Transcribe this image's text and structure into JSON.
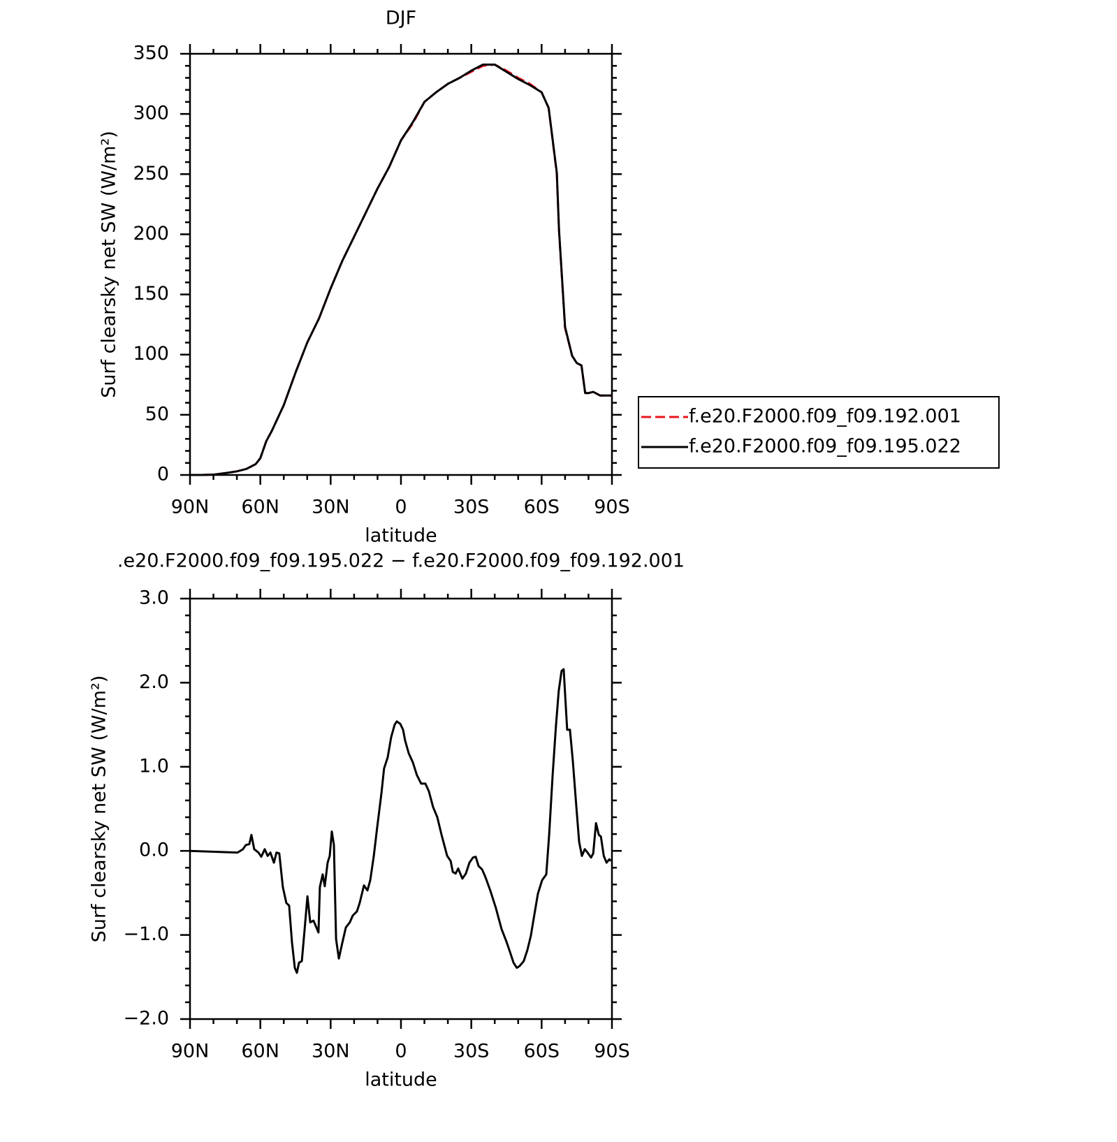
{
  "chart_data": [
    {
      "type": "line",
      "title": "DJF",
      "xlabel": "latitude",
      "ylabel": "Surf clearsky net SW (W/m²)",
      "x": [
        90,
        85,
        80,
        75,
        70,
        66,
        62,
        60,
        57.5,
        55,
        50,
        45,
        40,
        35,
        30,
        25,
        20,
        15,
        10,
        5,
        0,
        -5,
        -10,
        -15,
        -20,
        -25,
        -30,
        -35,
        -40,
        -45,
        -50,
        -55,
        -60,
        -63,
        -66.5,
        -67.4,
        -70,
        -73,
        -75,
        -77,
        -78.6,
        -80,
        -82,
        -85,
        -90
      ],
      "series": [
        {
          "name": "f.e20.F2000.f09_f09.192.001",
          "color": "#e8141c",
          "dashed": true,
          "values": [
            0,
            0,
            0.3,
            1.5,
            3,
            5,
            9,
            14,
            28,
            37,
            58,
            85,
            110,
            130,
            155,
            178,
            198,
            218,
            238,
            256,
            278,
            292,
            310,
            318,
            325,
            330,
            335,
            340,
            341,
            336,
            330,
            325,
            318,
            305,
            250,
            203,
            122,
            99,
            93,
            91,
            68,
            68,
            69,
            66,
            66
          ]
        },
        {
          "name": "f.e20.F2000.f09_f09.195.022",
          "color": "#000000",
          "dashed": false,
          "values": [
            0,
            0,
            0.3,
            1.5,
            3,
            5,
            9,
            14,
            28,
            37,
            58,
            85,
            110,
            130,
            155,
            178,
            198,
            218,
            238,
            256,
            278,
            293,
            310,
            318,
            325,
            330,
            336,
            341,
            341,
            335,
            329,
            324,
            318,
            305,
            251,
            204,
            123,
            99,
            93,
            91,
            68,
            68,
            69,
            66,
            66
          ]
        }
      ],
      "xlim": [
        90,
        -90
      ],
      "xticks": [
        {
          "value": 90,
          "label": "90N"
        },
        {
          "value": 60,
          "label": "60N"
        },
        {
          "value": 30,
          "label": "30N"
        },
        0,
        {
          "value": -30,
          "label": "30S"
        },
        {
          "value": -60,
          "label": "60S"
        },
        {
          "value": -90,
          "label": "90S"
        }
      ],
      "ylim": [
        0,
        350
      ],
      "yticks": [
        0,
        50,
        100,
        150,
        200,
        250,
        300,
        350
      ],
      "legend": "right"
    },
    {
      "type": "line",
      "title": ".e20.F2000.f09_f09.195.022 − f.e20.F2000.f09_f09.192.001",
      "xlabel": "latitude",
      "ylabel": "Surf clearsky net SW (W/m²)",
      "x": [
        90,
        69.7,
        67.4,
        66.2,
        64.7,
        63.8,
        62.6,
        60.8,
        59.6,
        58.1,
        56.9,
        55.7,
        54.2,
        53.1,
        51.9,
        50.4,
        48.9,
        47.7,
        46.5,
        45.3,
        44.4,
        43.5,
        42.3,
        41.1,
        39.9,
        38.7,
        37.3,
        36.1,
        35.2,
        34.6,
        33.4,
        32.5,
        31.3,
        30.4,
        29.5,
        28.6,
        27.7,
        26.5,
        25.0,
        23.5,
        21.8,
        20.6,
        18.8,
        17.6,
        15.8,
        14.3,
        13.1,
        11.6,
        10.2,
        8.3,
        7.2,
        5.7,
        4.2,
        2.7,
        1.8,
        0.3,
        -0.9,
        -1.8,
        -3.3,
        -5.1,
        -6.8,
        -8.6,
        -10.4,
        -11.9,
        -13.7,
        -15.5,
        -17.3,
        -19.7,
        -21.2,
        -22.1,
        -23.3,
        -24.4,
        -26.2,
        -27.7,
        -29.2,
        -30.7,
        -31.9,
        -33.1,
        -34.6,
        -36.0,
        -38.1,
        -40.5,
        -42.9,
        -45.0,
        -46.5,
        -48.0,
        -49.4,
        -50.6,
        -52.4,
        -53.9,
        -55.4,
        -56.9,
        -58.4,
        -60.2,
        -62.0,
        -63.2,
        -64.7,
        -66.1,
        -67.3,
        -68.5,
        -69.4,
        -70.9,
        -72.1,
        -73.3,
        -74.8,
        -76.0,
        -77.2,
        -78.4,
        -79.6,
        -81.1,
        -82.0,
        -83.2,
        -84.4,
        -85.3,
        -86.5,
        -87.7,
        -88.9,
        -89.5
      ],
      "series": [
        {
          "color": "#000000",
          "dashed": false,
          "values": [
            0,
            -0.02,
            0.02,
            0.07,
            0.08,
            0.19,
            0.02,
            -0.02,
            -0.07,
            0.02,
            -0.06,
            -0.02,
            -0.14,
            -0.02,
            -0.03,
            -0.43,
            -0.62,
            -0.65,
            -1.09,
            -1.39,
            -1.45,
            -1.33,
            -1.31,
            -0.93,
            -0.54,
            -0.85,
            -0.83,
            -0.91,
            -0.97,
            -0.43,
            -0.28,
            -0.42,
            -0.14,
            -0.06,
            0.23,
            0.07,
            -1.05,
            -1.28,
            -1.09,
            -0.91,
            -0.85,
            -0.77,
            -0.72,
            -0.62,
            -0.41,
            -0.47,
            -0.35,
            -0.06,
            0.27,
            0.69,
            0.98,
            1.11,
            1.35,
            1.5,
            1.54,
            1.51,
            1.44,
            1.31,
            1.16,
            1.05,
            0.9,
            0.8,
            0.8,
            0.71,
            0.52,
            0.4,
            0.19,
            -0.06,
            -0.12,
            -0.25,
            -0.27,
            -0.21,
            -0.33,
            -0.27,
            -0.14,
            -0.08,
            -0.07,
            -0.18,
            -0.22,
            -0.31,
            -0.47,
            -0.68,
            -0.93,
            -1.08,
            -1.2,
            -1.33,
            -1.39,
            -1.37,
            -1.31,
            -1.18,
            -1.01,
            -0.76,
            -0.51,
            -0.35,
            -0.28,
            0.19,
            0.9,
            1.48,
            1.9,
            2.14,
            2.16,
            1.44,
            1.44,
            1.07,
            0.53,
            0.11,
            -0.06,
            0.02,
            -0.02,
            -0.08,
            -0.03,
            0.33,
            0.19,
            0.17,
            -0.06,
            -0.14,
            -0.1,
            -0.12
          ]
        }
      ],
      "xlim": [
        90,
        -90
      ],
      "xticks": [
        {
          "value": 90,
          "label": "90N"
        },
        {
          "value": 60,
          "label": "60N"
        },
        {
          "value": 30,
          "label": "30N"
        },
        0,
        {
          "value": -30,
          "label": "30S"
        },
        {
          "value": -60,
          "label": "60S"
        },
        {
          "value": -90,
          "label": "90S"
        }
      ],
      "ylim": [
        -2,
        3
      ],
      "yticks": [
        {
          "value": -2,
          "label": "−2.0"
        },
        {
          "value": -1,
          "label": "−1.0"
        },
        {
          "value": 0,
          "label": "0.0"
        },
        {
          "value": 1,
          "label": "1.0"
        },
        {
          "value": 2,
          "label": "2.0"
        },
        {
          "value": 3,
          "label": "3.0"
        }
      ]
    }
  ]
}
